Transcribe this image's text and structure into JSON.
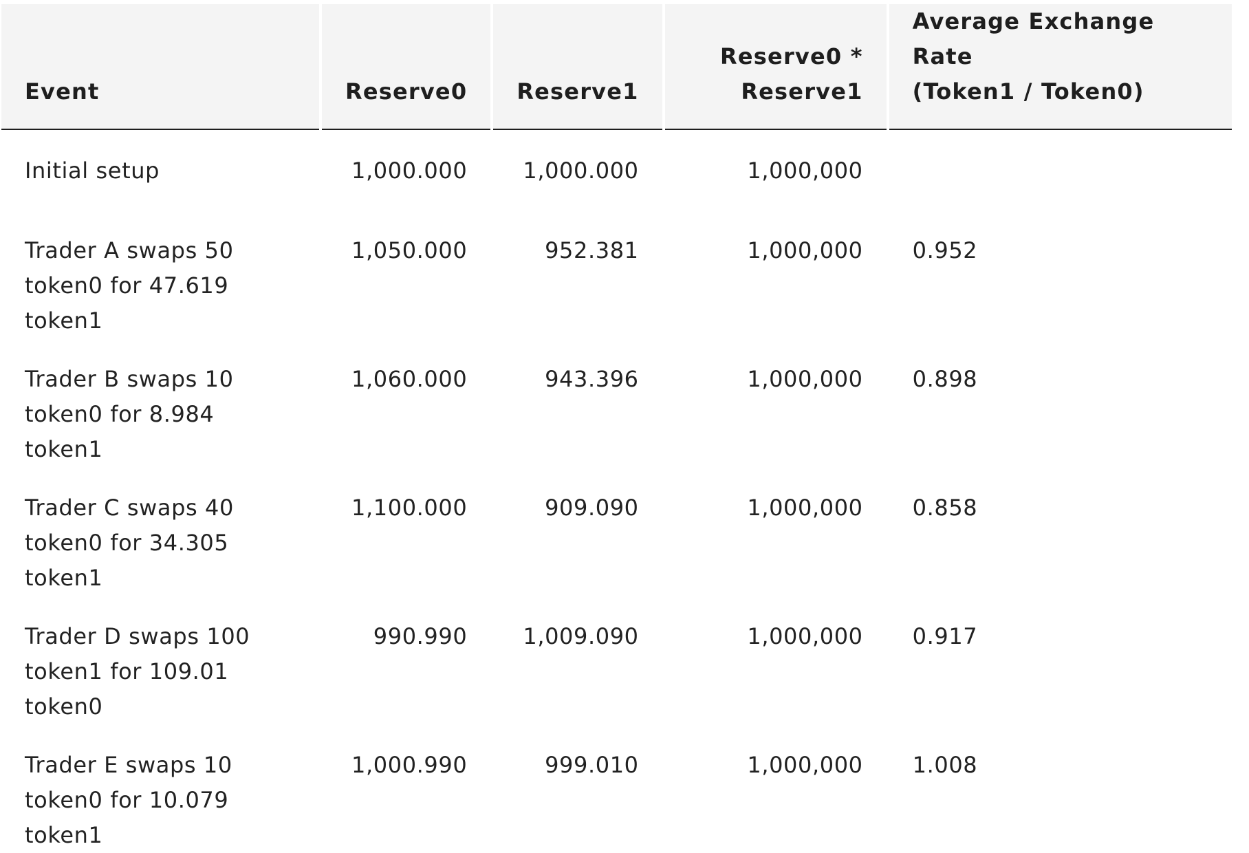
{
  "table": {
    "headers": {
      "event": "Event",
      "reserve0": "Reserve0",
      "reserve1": "Reserve1",
      "product_line1": "Reserve0 *",
      "product_line2": "Reserve1",
      "rate_line1": "Average Exchange Rate",
      "rate_line2": "(Token1 / Token0)"
    },
    "rows": [
      {
        "event_line1": "Initial setup",
        "event_line2": "",
        "reserve0": "1,000.000",
        "reserve1": "1,000.000",
        "product": "1,000,000",
        "rate": ""
      },
      {
        "event_line1": "Trader A swaps 50",
        "event_line2": "token0 for 47.619 token1",
        "reserve0": "1,050.000",
        "reserve1": "952.381",
        "product": "1,000,000",
        "rate": "0.952"
      },
      {
        "event_line1": "Trader B swaps 10",
        "event_line2": "token0 for 8.984 token1",
        "reserve0": "1,060.000",
        "reserve1": "943.396",
        "product": "1,000,000",
        "rate": "0.898"
      },
      {
        "event_line1": "Trader C swaps 40",
        "event_line2": "token0 for 34.305 token1",
        "reserve0": "1,100.000",
        "reserve1": "909.090",
        "product": "1,000,000",
        "rate": "0.858"
      },
      {
        "event_line1": "Trader D swaps 100",
        "event_line2": "token1 for 109.01 token0",
        "reserve0": "990.990",
        "reserve1": "1,009.090",
        "product": "1,000,000",
        "rate": "0.917"
      },
      {
        "event_line1": "Trader E swaps 10",
        "event_line2": "token0 for 10.079 token1",
        "reserve0": "1,000.990",
        "reserve1": "999.010",
        "product": "1,000,000",
        "rate": "1.008"
      }
    ]
  }
}
